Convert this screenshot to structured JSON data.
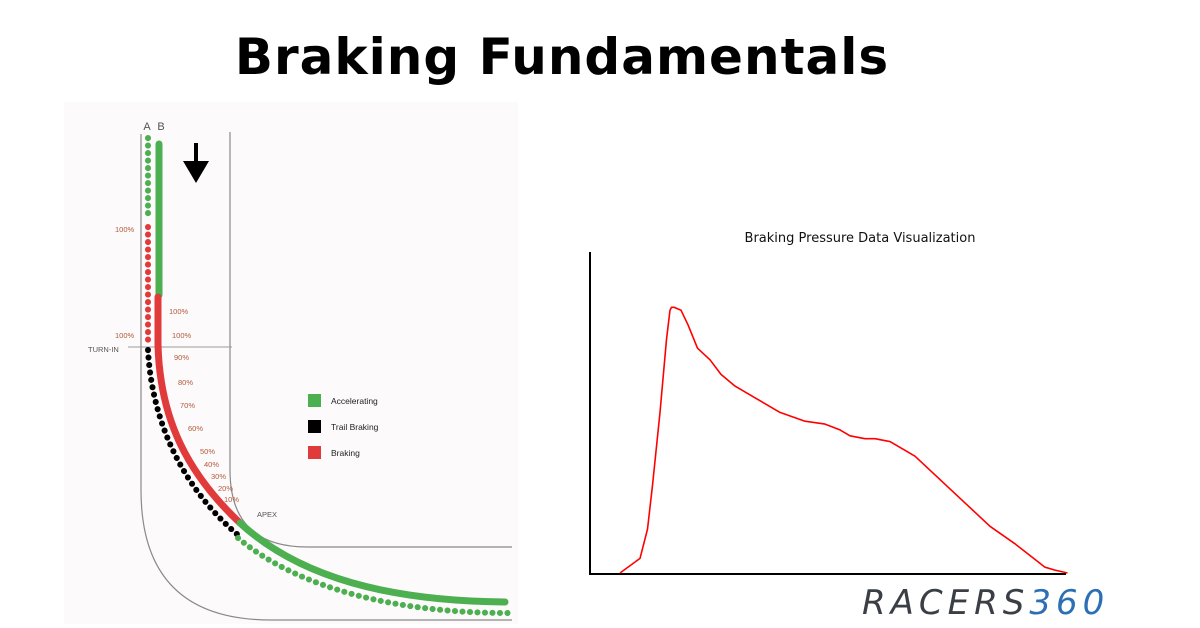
{
  "title": "Braking Fundamentals",
  "diagram": {
    "line_labels": [
      "A",
      "B"
    ],
    "marker_turn_in": "TURN-IN",
    "marker_apex": "APEX",
    "line_a_percent_labels": [
      "100%",
      "100%"
    ],
    "line_b_percent_labels": [
      "100%",
      "100%",
      "90%",
      "80%",
      "70%",
      "60%",
      "50%",
      "40%",
      "30%",
      "20%",
      "10%"
    ],
    "legend": [
      {
        "label": "Accelerating",
        "color": "#4caf50"
      },
      {
        "label": "Trail Braking",
        "color": "#000000"
      },
      {
        "label": "Braking",
        "color": "#e03a3a"
      }
    ],
    "colors": {
      "accelerating": "#4caf50",
      "trail_braking": "#000000",
      "braking": "#e03a3a",
      "track_edge": "#8a8a8a",
      "percent_label": "#b05a3c"
    }
  },
  "chart_data": {
    "type": "line",
    "title": "Braking Pressure Data Visualization",
    "xlabel": "",
    "ylabel": "",
    "xlim": [
      0,
      100
    ],
    "ylim": [
      0,
      100
    ],
    "grid": false,
    "series": [
      {
        "color": "#ff0000",
        "x": [
          6,
          10,
          11.5,
          12.5,
          14,
          15.3,
          16,
          16.3,
          16.8,
          18.2,
          19.6,
          21.5,
          24,
          26.2,
          29,
          33,
          38,
          43,
          47,
          50,
          52,
          55,
          57,
          60,
          65,
          70,
          75,
          80,
          85,
          88,
          91,
          93,
          95.5
        ],
        "values": [
          0,
          5,
          15,
          30,
          55,
          80,
          90,
          91,
          91,
          90,
          85,
          77,
          73,
          68,
          64,
          60,
          55,
          52,
          51,
          49,
          47,
          46,
          46,
          45,
          40,
          32,
          24,
          16,
          10,
          6,
          2,
          1,
          0
        ]
      }
    ]
  },
  "brand": {
    "part1": "RACERS",
    "part2": "360"
  }
}
